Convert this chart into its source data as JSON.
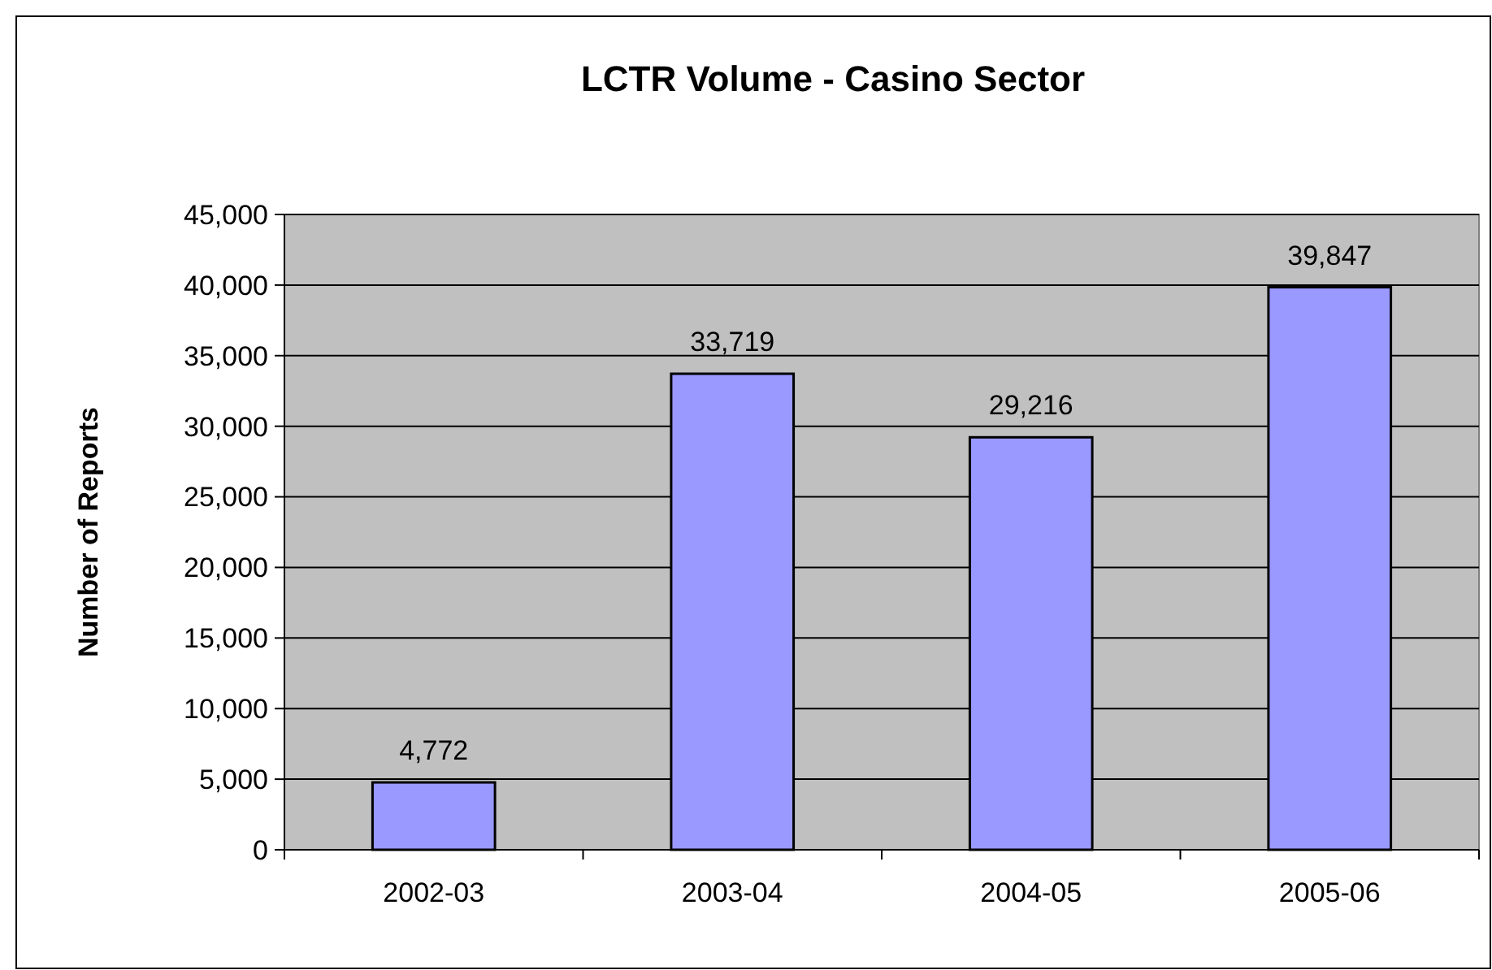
{
  "chart_data": {
    "type": "bar",
    "title": "LCTR Volume - Casino Sector",
    "ylabel": "Number of Reports",
    "categories": [
      "2002-03",
      "2003-04",
      "2004-05",
      "2005-06"
    ],
    "values": [
      4772,
      33719,
      29216,
      39847
    ],
    "value_labels": [
      "4,772",
      "33,719",
      "29,216",
      "39,847"
    ],
    "color": "#9999ff",
    "ylim": [
      0,
      45000
    ],
    "yticks": [
      {
        "value": 0,
        "label": "0"
      },
      {
        "value": 5000,
        "label": "5,000"
      },
      {
        "value": 10000,
        "label": "10,000"
      },
      {
        "value": 15000,
        "label": "15,000"
      },
      {
        "value": 20000,
        "label": "20,000"
      },
      {
        "value": 25000,
        "label": "25,000"
      },
      {
        "value": 30000,
        "label": "30,000"
      },
      {
        "value": 35000,
        "label": "35,000"
      },
      {
        "value": 40000,
        "label": "40,000"
      },
      {
        "value": 45000,
        "label": "45,000"
      }
    ],
    "grid": "y"
  }
}
